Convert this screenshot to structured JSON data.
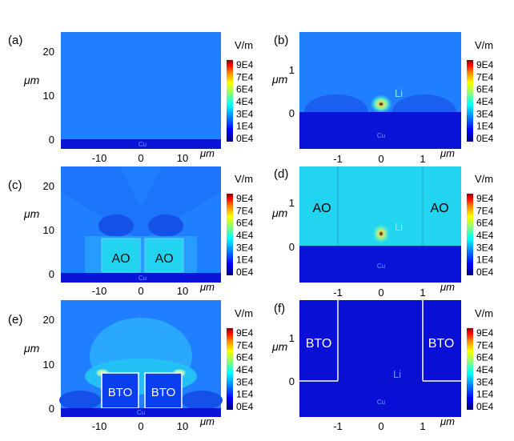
{
  "panels": [
    {
      "label": "(a)",
      "y_ticks": [
        "20",
        "10",
        "0"
      ],
      "y_unit": "μm",
      "x_ticks": [
        "-10",
        "0",
        "10"
      ],
      "x_unit": "μm",
      "region_labels": {
        "cu": "Cu"
      }
    },
    {
      "label": "(b)",
      "y_ticks": [
        "1",
        "0"
      ],
      "y_unit": "μm",
      "x_ticks": [],
      "x_unit": "μm",
      "region_labels": {
        "cu": "Cu",
        "li": "Li"
      }
    },
    {
      "label": "(c)",
      "y_ticks": [
        "20",
        "10",
        "0"
      ],
      "y_unit": "μm",
      "x_ticks": [
        "-10",
        "0",
        "10"
      ],
      "x_unit": "μm",
      "region_labels": {
        "cu": "Cu",
        "block_left": "AO",
        "block_right": "AO"
      }
    },
    {
      "label": "(d)",
      "y_ticks": [
        "1",
        "0"
      ],
      "y_unit": "μm",
      "x_ticks": [
        "-1",
        "0",
        "1"
      ],
      "x_unit": "μm",
      "region_labels": {
        "cu": "Cu",
        "li": "Li",
        "block_left": "AO",
        "block_right": "AO"
      }
    },
    {
      "label": "(e)",
      "y_ticks": [
        "20",
        "10",
        "0"
      ],
      "y_unit": "μm",
      "x_ticks": [
        "-10",
        "0",
        "10"
      ],
      "x_unit": "μm",
      "region_labels": {
        "cu": "Cu",
        "block_left": "BTO",
        "block_right": "BTO"
      }
    },
    {
      "label": "(f)",
      "y_ticks": [
        "1",
        "0"
      ],
      "y_unit": "μm",
      "x_ticks": [
        "-1",
        "0",
        "1"
      ],
      "x_unit": "μm",
      "region_labels": {
        "cu": "Cu",
        "li": "Li",
        "block_left": "BTO",
        "block_right": "BTO"
      }
    },
    {
      "label": "",
      "y_ticks": [],
      "y_unit": "",
      "x_ticks": [
        "-1",
        "0",
        "1"
      ],
      "x_unit": "μm",
      "region_labels": {}
    }
  ],
  "colorbar": {
    "unit": "V/m",
    "ticks": [
      "9E4",
      "7E4",
      "6E4",
      "4E4",
      "3E4",
      "1E4",
      "0E4"
    ],
    "colors": [
      "#00007f",
      "#0000ff",
      "#007fff",
      "#00ffff",
      "#7fff7f",
      "#ffff00",
      "#ff7f00",
      "#ff0000",
      "#7f0000"
    ]
  },
  "field_colors": {
    "cu": "#0a14d8",
    "background_blue": "#1f7fff",
    "dark_blue": "#0f3fe8",
    "light_cyan": "#22d4f0",
    "glow": "#e8f06a",
    "navy": "#0a0fd6"
  }
}
